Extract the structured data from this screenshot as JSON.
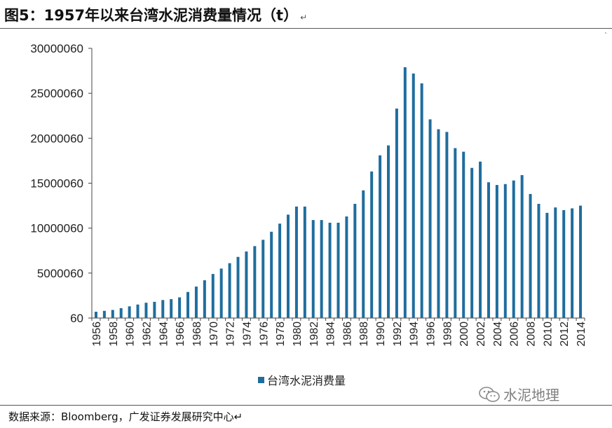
{
  "header": {
    "title": "图5：1957年以来台湾水泥消费量情况（t）",
    "para_mark": "↵"
  },
  "footer": {
    "source": "数据来源：Bloomberg，广发证券发展研究中心↵",
    "watermark": "水泥地理"
  },
  "colors": {
    "bar": "#1f6d9e",
    "axis": "#444444",
    "text": "#222222"
  },
  "chart_data": {
    "type": "bar",
    "categories": [
      "1956",
      "1957",
      "1958",
      "1959",
      "1960",
      "1961",
      "1962",
      "1963",
      "1964",
      "1965",
      "1966",
      "1967",
      "1968",
      "1969",
      "1970",
      "1971",
      "1972",
      "1973",
      "1974",
      "1975",
      "1976",
      "1977",
      "1978",
      "1979",
      "1980",
      "1981",
      "1982",
      "1983",
      "1984",
      "1985",
      "1986",
      "1987",
      "1988",
      "1989",
      "1990",
      "1991",
      "1992",
      "1993",
      "1994",
      "1995",
      "1996",
      "1997",
      "1998",
      "1999",
      "2000",
      "2001",
      "2002",
      "2003",
      "2004",
      "2005",
      "2006",
      "2007",
      "2008",
      "2009",
      "2010",
      "2011",
      "2012",
      "2013",
      "2014"
    ],
    "x_tick_labels": [
      "1956",
      "1958",
      "1960",
      "1962",
      "1964",
      "1966",
      "1968",
      "1970",
      "1972",
      "1974",
      "1976",
      "1978",
      "1980",
      "1982",
      "1984",
      "1986",
      "1988",
      "1990",
      "1992",
      "1994",
      "1996",
      "1998",
      "2000",
      "2002",
      "2004",
      "2006",
      "2008",
      "2010",
      "2012",
      "2014"
    ],
    "series": [
      {
        "name": "台湾水泥消费量",
        "values": [
          700000,
          800000,
          900000,
          1100000,
          1300000,
          1500000,
          1700000,
          1800000,
          2000000,
          2100000,
          2300000,
          2900000,
          3500000,
          4200000,
          4900000,
          5500000,
          6100000,
          6800000,
          7400000,
          8000000,
          8700000,
          9600000,
          10500000,
          11500000,
          12400000,
          12400000,
          10900000,
          10900000,
          10600000,
          10600000,
          11300000,
          12700000,
          14200000,
          16300000,
          18100000,
          19200000,
          23300000,
          27900000,
          27200000,
          26100000,
          22100000,
          21000000,
          20700000,
          18900000,
          18500000,
          16700000,
          17400000,
          15100000,
          14800000,
          14900000,
          15300000,
          15900000,
          13800000,
          12700000,
          11700000,
          12300000,
          12000000,
          12200000,
          12500000
        ]
      }
    ],
    "y_ticks": [
      "60",
      "5000060",
      "10000060",
      "15000060",
      "20000060",
      "25000060",
      "30000060"
    ],
    "ylim": [
      60,
      30000060
    ],
    "grid": false,
    "legend_position": "bottom-center"
  }
}
